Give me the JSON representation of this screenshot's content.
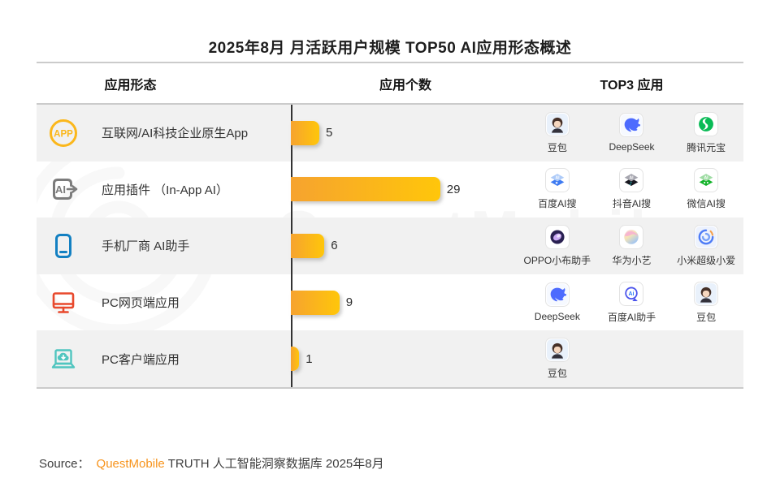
{
  "title": "2025年8月 月活跃用户规模 TOP50 AI应用形态概述",
  "watermark": "QuestMobile",
  "table": {
    "headers": [
      "应用形态",
      "应用个数",
      "TOP3 应用"
    ],
    "rows": [
      {
        "category": "互联网/AI科技企业原生App",
        "category_icon": "app-badge-icon",
        "count": 5,
        "top3": [
          {
            "name": "豆包",
            "icon": "doubao-icon"
          },
          {
            "name": "DeepSeek",
            "icon": "deepseek-icon"
          },
          {
            "name": "腾讯元宝",
            "icon": "tencent-yuanbao-icon"
          }
        ]
      },
      {
        "category": "应用插件 （In-App AI）",
        "category_icon": "in-app-ai-icon",
        "count": 29,
        "top3": [
          {
            "name": "百度AI搜",
            "icon": "baidu-ai-search-icon"
          },
          {
            "name": "抖音AI搜",
            "icon": "douyin-ai-search-icon"
          },
          {
            "name": "微信AI搜",
            "icon": "weixin-ai-search-icon"
          }
        ]
      },
      {
        "category": "手机厂商 AI助手",
        "category_icon": "phone-icon",
        "count": 6,
        "top3": [
          {
            "name": "OPPO小布助手",
            "icon": "oppo-xiaobu-icon"
          },
          {
            "name": "华为小艺",
            "icon": "huawei-xiaoyi-icon"
          },
          {
            "name": "小米超级小爱",
            "icon": "xiaomi-xiaoai-icon"
          }
        ]
      },
      {
        "category": "PC网页端应用",
        "category_icon": "monitor-icon",
        "count": 9,
        "top3": [
          {
            "name": "DeepSeek",
            "icon": "deepseek-icon"
          },
          {
            "name": "百度AI助手",
            "icon": "baidu-ai-assistant-icon"
          },
          {
            "name": "豆包",
            "icon": "doubao-icon"
          }
        ]
      },
      {
        "category": "PC客户端应用",
        "category_icon": "laptop-icon",
        "count": 1,
        "top3": [
          {
            "name": "豆包",
            "icon": "doubao-icon"
          }
        ]
      }
    ]
  },
  "chart_data": {
    "type": "bar",
    "orientation": "horizontal",
    "title": "2025年8月 月活跃用户规模 TOP50 AI应用形态概述",
    "categories": [
      "互联网/AI科技企业原生App",
      "应用插件 （In-App AI）",
      "手机厂商 AI助手",
      "PC网页端应用",
      "PC客户端应用"
    ],
    "values": [
      5,
      29,
      6,
      9,
      1
    ],
    "xlabel": "应用个数",
    "ylabel": "应用形态",
    "xlim": [
      0,
      30
    ],
    "grid": false,
    "legend": "none",
    "bar_gradient": [
      "#F6A32F",
      "#FFC60A"
    ],
    "data_labels": true
  },
  "source": {
    "label": "Source：",
    "brand": "QuestMobile",
    "text": "TRUTH 人工智能洞察数据库 2025年8月"
  },
  "colors": {
    "bar_start": "#F6A32F",
    "bar_end": "#FFC60A",
    "stripe": "#F1F1F1",
    "rule": "#CBCBCB",
    "axis": "#333333",
    "brand_orange": "#F7941D",
    "icon_app": "#FBB71B",
    "icon_inapp": "#7C7C7C",
    "icon_phone": "#1380C2",
    "icon_monitor": "#E8492D",
    "icon_laptop": "#50C5BF"
  }
}
